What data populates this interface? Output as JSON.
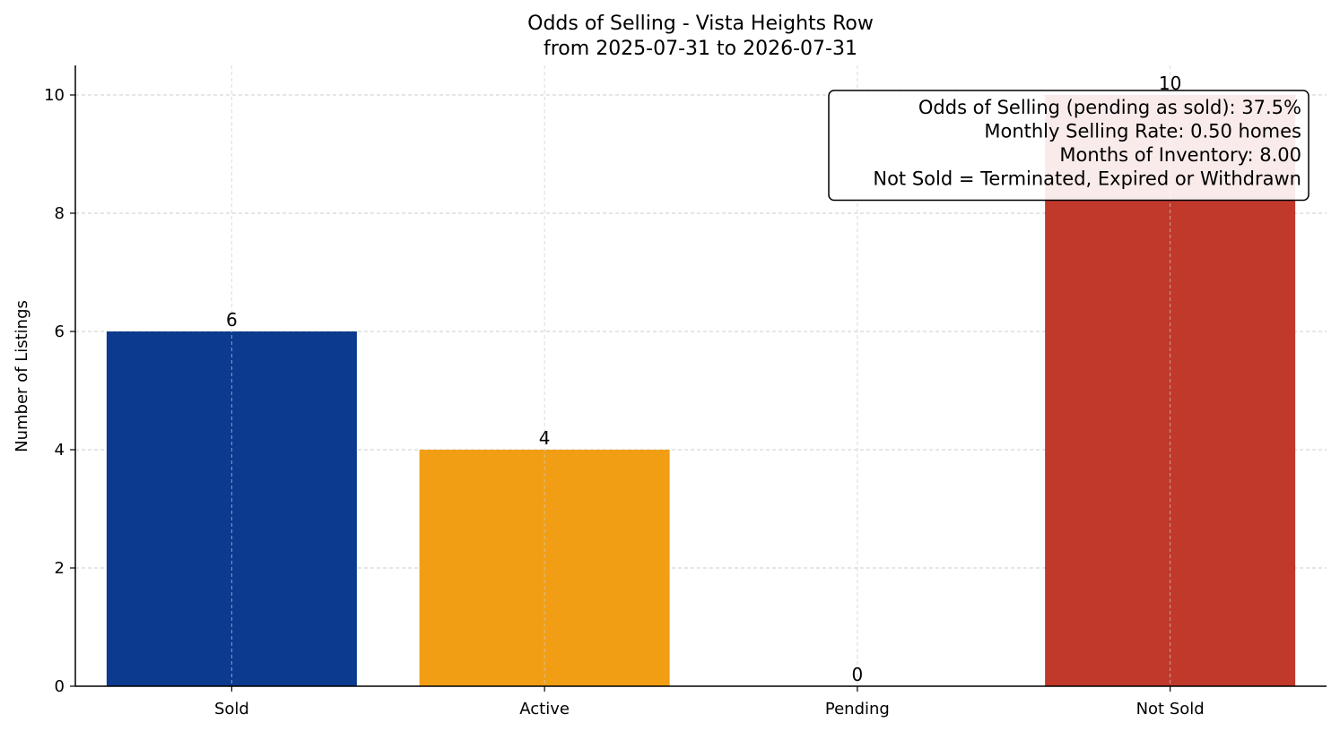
{
  "chart_data": {
    "type": "bar",
    "title": "Odds of Selling - Vista Heights Row",
    "subtitle": "from 2025-07-31 to 2026-07-31",
    "ylabel": "Number of Listings",
    "xlabel": "",
    "categories": [
      "Sold",
      "Active",
      "Pending",
      "Not Sold"
    ],
    "values": [
      6,
      4,
      0,
      10
    ],
    "data_labels": [
      "6",
      "4",
      "0",
      "10"
    ],
    "colors": [
      "#0b3a8f",
      "#f29e14",
      "#2e7d32",
      "#c0392b"
    ],
    "ylim": [
      0,
      10.5
    ],
    "yticks": [
      0,
      2,
      4,
      6,
      8,
      10
    ],
    "grid": true,
    "annotation": {
      "placement": "top-right",
      "lines": [
        "Odds of Selling (pending as sold): 37.5%",
        "Monthly Selling Rate: 0.50 homes",
        "Months of Inventory: 8.00",
        "Not Sold = Terminated, Expired or Withdrawn"
      ]
    }
  }
}
